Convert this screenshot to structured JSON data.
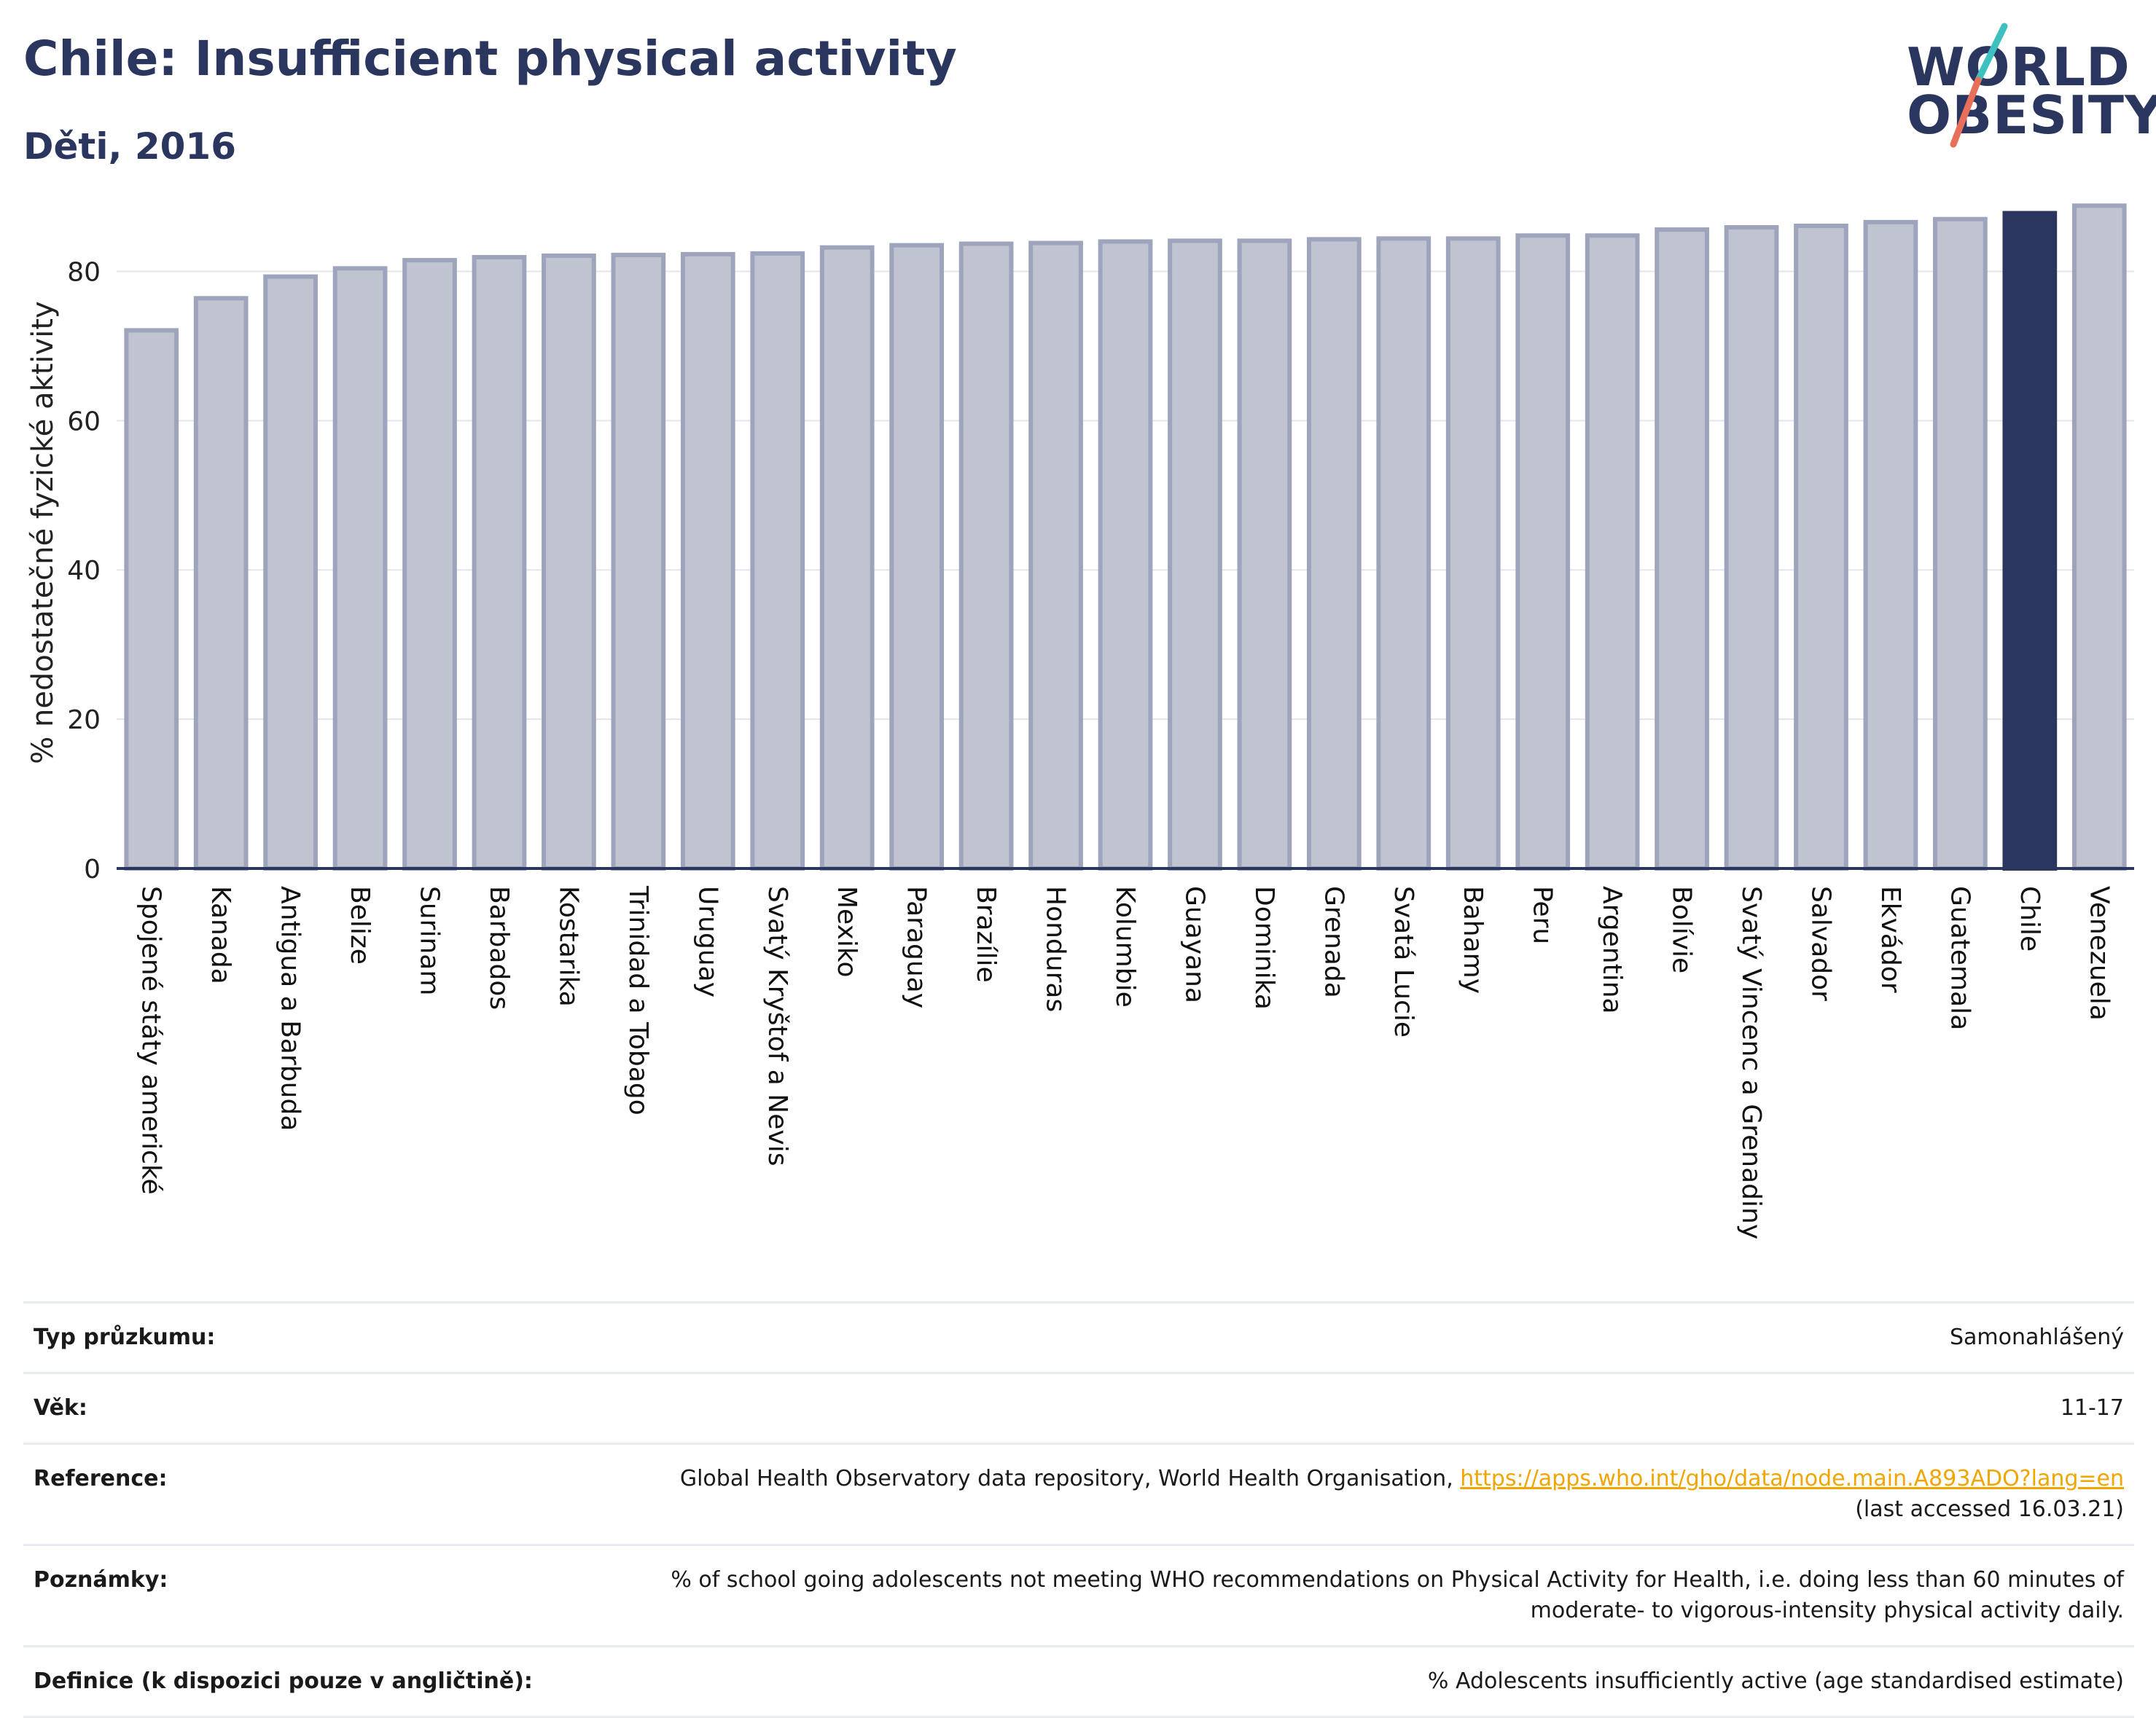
{
  "title": "Chile: Insufficient physical activity",
  "subtitle": "Děti, 2016",
  "logo": {
    "line1": "WORLD",
    "line2": "OBESITY"
  },
  "colors": {
    "bar": "#c0c3d0",
    "bar_outline": "#9ea4bc",
    "highlight": "#2b365f",
    "grid": "#e3e5ec",
    "link": "#f0a500"
  },
  "chart_data": {
    "type": "bar",
    "ylabel": "% nedostatečné fyzické aktivity",
    "xlabel": "",
    "ylim": [
      0,
      90
    ],
    "yticks": [
      0,
      20,
      40,
      60,
      80
    ],
    "highlight": "Chile",
    "grid": true,
    "categories": [
      "Spojené státy americké",
      "Kanada",
      "Antigua a Barbuda",
      "Belize",
      "Surinam",
      "Barbados",
      "Kostarika",
      "Trinidad a Tobago",
      "Uruguay",
      "Svatý Kryštof a Nevis",
      "Mexiko",
      "Paraguay",
      "Brazílie",
      "Honduras",
      "Kolumbie",
      "Guayana",
      "Dominika",
      "Grenada",
      "Svatá Lucie",
      "Bahamy",
      "Peru",
      "Argentina",
      "Bolívie",
      "Svatý Vincenc a Grenadiny",
      "Salvador",
      "Ekvádor",
      "Guatemala",
      "Chile",
      "Venezuela"
    ],
    "values": [
      72.1,
      76.4,
      79.3,
      80.4,
      81.5,
      81.9,
      82.1,
      82.2,
      82.3,
      82.4,
      83.2,
      83.5,
      83.7,
      83.8,
      84.0,
      84.1,
      84.1,
      84.3,
      84.4,
      84.4,
      84.8,
      84.8,
      85.6,
      85.9,
      86.1,
      86.6,
      87.0,
      87.8,
      88.8
    ]
  },
  "table": [
    {
      "label": "Typ průzkumu:",
      "value": "Samonahlášený"
    },
    {
      "label": "Věk:",
      "value": "11-17"
    },
    {
      "label": "Reference:",
      "value": "Global Health Observatory data repository, World Health Organisation, ",
      "link": "https://apps.who.int/gho/data/node.main.A893ADO?lang=en",
      "note": "(last accessed 16.03.21)"
    },
    {
      "label": "Poznámky:",
      "value": "% of school going adolescents not meeting WHO recommendations on Physical Activity for Health, i.e. doing less than 60 minutes of moderate- to vigorous-intensity physical activity daily."
    },
    {
      "label": "Definice (k dispozici pouze v angličtině):",
      "value": "% Adolescents insufficiently active (age standardised estimate)"
    }
  ]
}
